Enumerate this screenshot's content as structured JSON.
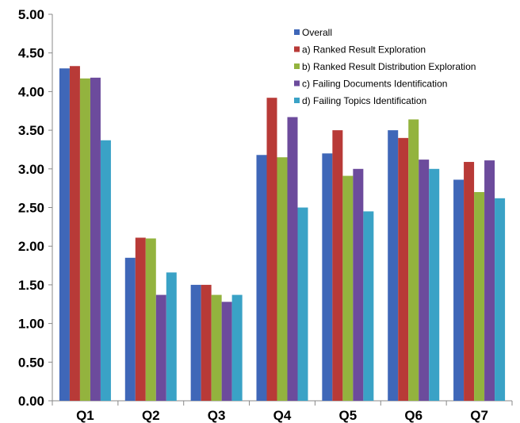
{
  "chart_data": {
    "type": "bar",
    "categories": [
      "Q1",
      "Q2",
      "Q3",
      "Q4",
      "Q5",
      "Q6",
      "Q7"
    ],
    "series": [
      {
        "name": "Overall",
        "color": "#3f67b8",
        "values": [
          4.3,
          1.85,
          1.5,
          3.18,
          3.2,
          3.5,
          2.86
        ]
      },
      {
        "name": "a) Ranked Result Exploration",
        "color": "#b83a37",
        "values": [
          4.33,
          2.11,
          1.5,
          3.92,
          3.5,
          3.4,
          3.09
        ]
      },
      {
        "name": "b) Ranked Result Distribution Exploration",
        "color": "#93b33e",
        "values": [
          4.17,
          2.1,
          1.37,
          3.15,
          2.91,
          3.64,
          2.7
        ]
      },
      {
        "name": "c) Failing Documents Identification",
        "color": "#6c4b9c",
        "values": [
          4.18,
          1.37,
          1.28,
          3.67,
          3.0,
          3.12,
          3.11
        ]
      },
      {
        "name": "d) Failing Topics Identification",
        "color": "#3aa2c6",
        "values": [
          3.37,
          1.66,
          1.37,
          2.5,
          2.45,
          3.0,
          2.62
        ]
      }
    ],
    "ylim": [
      0,
      5
    ],
    "yticks": [
      "0.00",
      "0.50",
      "1.00",
      "1.50",
      "2.00",
      "2.50",
      "3.00",
      "3.50",
      "4.00",
      "4.50",
      "5.00"
    ],
    "grid": false,
    "legend_position": "top-right"
  }
}
